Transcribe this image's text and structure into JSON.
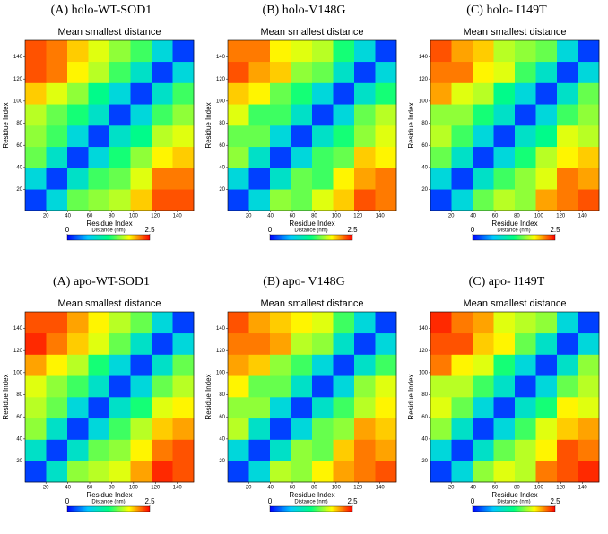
{
  "chart_data": [
    {
      "type": "heatmap",
      "header": "(A) holo-WT-SOD1",
      "title": "Mean smallest distance",
      "x_label": "Residue Index",
      "y_label": "Residue Index",
      "xlim": [
        1,
        155
      ],
      "ylim": [
        1,
        155
      ],
      "xticks": [
        20,
        40,
        60,
        80,
        100,
        120,
        140
      ],
      "yticks": [
        20,
        40,
        60,
        80,
        100,
        120,
        140
      ],
      "colors": [
        "#0000ff",
        "#00c8ff",
        "#00ff80",
        "#ffff00",
        "#ff0000"
      ],
      "colorbar_label": "Distance (nm)",
      "colorbar_lim": [
        0,
        2.5
      ],
      "colorbar_ticks": [
        0,
        2.5
      ],
      "values": [
        [
          0.2,
          0.8,
          1.5,
          1.6,
          1.7,
          2.0,
          2.3,
          2.3
        ],
        [
          0.8,
          0.2,
          0.9,
          1.4,
          1.5,
          1.8,
          2.2,
          2.2
        ],
        [
          1.5,
          0.9,
          0.2,
          0.8,
          1.3,
          1.6,
          1.9,
          2.0
        ],
        [
          1.6,
          1.4,
          0.8,
          0.2,
          0.9,
          1.2,
          1.7,
          1.8
        ],
        [
          1.7,
          1.5,
          1.3,
          0.9,
          0.2,
          0.8,
          1.4,
          1.6
        ],
        [
          2.0,
          1.8,
          1.6,
          1.2,
          0.8,
          0.2,
          0.9,
          1.4
        ],
        [
          2.3,
          2.2,
          1.9,
          1.7,
          1.4,
          0.9,
          0.2,
          0.8
        ],
        [
          2.3,
          2.2,
          2.0,
          1.8,
          1.6,
          1.4,
          0.8,
          0.2
        ]
      ]
    },
    {
      "type": "heatmap",
      "header": "(B) holo-V148G",
      "title": "Mean smallest distance",
      "x_label": "Residue Index",
      "y_label": "Residue Index",
      "xlim": [
        1,
        155
      ],
      "ylim": [
        1,
        155
      ],
      "xticks": [
        20,
        40,
        60,
        80,
        100,
        120,
        140
      ],
      "yticks": [
        20,
        40,
        60,
        80,
        100,
        120,
        140
      ],
      "colors": [
        "#0000ff",
        "#00c8ff",
        "#00ff80",
        "#ffff00",
        "#ff0000"
      ],
      "colorbar_label": "Distance (nm)",
      "colorbar_lim": [
        0,
        2.5
      ],
      "colorbar_ticks": [
        0,
        2.5
      ],
      "values": [
        [
          0.2,
          0.8,
          1.6,
          1.5,
          1.8,
          2.0,
          2.3,
          2.2
        ],
        [
          0.8,
          0.2,
          0.9,
          1.5,
          1.4,
          1.9,
          2.1,
          2.2
        ],
        [
          1.6,
          0.9,
          0.2,
          0.8,
          1.4,
          1.5,
          2.0,
          1.9
        ],
        [
          1.5,
          1.5,
          0.8,
          0.2,
          0.9,
          1.3,
          1.6,
          1.8
        ],
        [
          1.8,
          1.4,
          1.4,
          0.9,
          0.2,
          0.8,
          1.5,
          1.7
        ],
        [
          2.0,
          1.9,
          1.5,
          1.3,
          0.8,
          0.2,
          0.9,
          1.3
        ],
        [
          2.3,
          2.1,
          2.0,
          1.6,
          1.5,
          0.9,
          0.2,
          0.8
        ],
        [
          2.2,
          2.2,
          1.9,
          1.8,
          1.7,
          1.3,
          0.8,
          0.2
        ]
      ]
    },
    {
      "type": "heatmap",
      "header": "(C) holo- I149T",
      "title": "Mean smallest distance",
      "x_label": "Residue Index",
      "y_label": "Residue Index",
      "xlim": [
        1,
        155
      ],
      "ylim": [
        1,
        155
      ],
      "xticks": [
        20,
        40,
        60,
        80,
        100,
        120,
        140
      ],
      "yticks": [
        20,
        40,
        60,
        80,
        100,
        120,
        140
      ],
      "colors": [
        "#0000ff",
        "#00c8ff",
        "#00ff80",
        "#ffff00",
        "#ff0000"
      ],
      "colorbar_label": "Distance (nm)",
      "colorbar_lim": [
        0,
        2.5
      ],
      "colorbar_ticks": [
        0,
        2.5
      ],
      "values": [
        [
          0.2,
          0.8,
          1.5,
          1.7,
          1.6,
          2.1,
          2.2,
          2.3
        ],
        [
          0.8,
          0.2,
          0.9,
          1.4,
          1.6,
          1.8,
          2.2,
          2.1
        ],
        [
          1.5,
          0.9,
          0.2,
          0.8,
          1.3,
          1.7,
          1.9,
          2.0
        ],
        [
          1.7,
          1.4,
          0.8,
          0.2,
          0.9,
          1.2,
          1.8,
          1.7
        ],
        [
          1.6,
          1.6,
          1.3,
          0.9,
          0.2,
          0.8,
          1.4,
          1.6
        ],
        [
          2.1,
          1.8,
          1.7,
          1.2,
          0.8,
          0.2,
          0.9,
          1.5
        ],
        [
          2.2,
          2.2,
          1.9,
          1.8,
          1.4,
          0.9,
          0.2,
          0.8
        ],
        [
          2.3,
          2.1,
          2.0,
          1.7,
          1.6,
          1.5,
          0.8,
          0.2
        ]
      ]
    },
    {
      "type": "heatmap",
      "header": "(A) apo-WT-SOD1",
      "title": "Mean smallest distance",
      "x_label": "Residue Index",
      "y_label": "Residue Index",
      "xlim": [
        1,
        155
      ],
      "ylim": [
        1,
        155
      ],
      "xticks": [
        20,
        40,
        60,
        80,
        100,
        120,
        140
      ],
      "yticks": [
        20,
        40,
        60,
        80,
        100,
        120,
        140
      ],
      "colors": [
        "#0000ff",
        "#00c8ff",
        "#00ff80",
        "#ffff00",
        "#ff0000"
      ],
      "colorbar_label": "Distance (nm)",
      "colorbar_lim": [
        0,
        2.5
      ],
      "colorbar_ticks": [
        0,
        2.5
      ],
      "values": [
        [
          0.2,
          0.9,
          1.6,
          1.7,
          1.8,
          2.1,
          2.4,
          2.3
        ],
        [
          0.9,
          0.2,
          0.9,
          1.5,
          1.6,
          1.9,
          2.2,
          2.3
        ],
        [
          1.6,
          0.9,
          0.2,
          0.8,
          1.4,
          1.7,
          2.0,
          2.1
        ],
        [
          1.7,
          1.5,
          0.8,
          0.2,
          0.9,
          1.3,
          1.8,
          1.9
        ],
        [
          1.8,
          1.6,
          1.4,
          0.9,
          0.2,
          0.8,
          1.5,
          1.7
        ],
        [
          2.1,
          1.9,
          1.7,
          1.3,
          0.8,
          0.2,
          0.9,
          1.5
        ],
        [
          2.4,
          2.2,
          2.0,
          1.8,
          1.5,
          0.9,
          0.2,
          0.8
        ],
        [
          2.3,
          2.3,
          2.1,
          1.9,
          1.7,
          1.5,
          0.8,
          0.2
        ]
      ]
    },
    {
      "type": "heatmap",
      "header": "(B) apo- V148G",
      "title": "Mean smallest distance",
      "x_label": "Residue Index",
      "y_label": "Residue Index",
      "xlim": [
        1,
        155
      ],
      "ylim": [
        1,
        155
      ],
      "xticks": [
        20,
        40,
        60,
        80,
        100,
        120,
        140
      ],
      "yticks": [
        20,
        40,
        60,
        80,
        100,
        120,
        140
      ],
      "colors": [
        "#0000ff",
        "#00c8ff",
        "#00ff80",
        "#ffff00",
        "#ff0000"
      ],
      "colorbar_label": "Distance (nm)",
      "colorbar_lim": [
        0,
        2.5
      ],
      "colorbar_ticks": [
        0,
        2.5
      ],
      "values": [
        [
          0.2,
          0.8,
          1.7,
          1.6,
          1.9,
          2.1,
          2.2,
          2.3
        ],
        [
          0.8,
          0.2,
          0.9,
          1.6,
          1.5,
          2.0,
          2.2,
          2.1
        ],
        [
          1.7,
          0.9,
          0.2,
          0.8,
          1.5,
          1.6,
          2.1,
          2.0
        ],
        [
          1.6,
          1.6,
          0.8,
          0.2,
          0.9,
          1.4,
          1.7,
          1.9
        ],
        [
          1.9,
          1.5,
          1.5,
          0.9,
          0.2,
          0.8,
          1.6,
          1.8
        ],
        [
          2.1,
          2.0,
          1.6,
          1.4,
          0.8,
          0.2,
          0.9,
          1.4
        ],
        [
          2.2,
          2.2,
          2.1,
          1.7,
          1.6,
          0.9,
          0.2,
          0.8
        ],
        [
          2.3,
          2.1,
          2.0,
          1.9,
          1.8,
          1.4,
          0.8,
          0.2
        ]
      ]
    },
    {
      "type": "heatmap",
      "header": "(C) apo- I149T",
      "title": "Mean smallest distance",
      "x_label": "Residue Index",
      "y_label": "Residue Index",
      "xlim": [
        1,
        155
      ],
      "ylim": [
        1,
        155
      ],
      "xticks": [
        20,
        40,
        60,
        80,
        100,
        120,
        140
      ],
      "yticks": [
        20,
        40,
        60,
        80,
        100,
        120,
        140
      ],
      "colors": [
        "#0000ff",
        "#00c8ff",
        "#00ff80",
        "#ffff00",
        "#ff0000"
      ],
      "colorbar_label": "Distance (nm)",
      "colorbar_lim": [
        0,
        2.5
      ],
      "colorbar_ticks": [
        0,
        2.5
      ],
      "values": [
        [
          0.2,
          0.8,
          1.6,
          1.8,
          1.7,
          2.2,
          2.3,
          2.4
        ],
        [
          0.8,
          0.2,
          0.9,
          1.5,
          1.7,
          1.9,
          2.3,
          2.2
        ],
        [
          1.6,
          0.9,
          0.2,
          0.8,
          1.4,
          1.8,
          2.0,
          2.1
        ],
        [
          1.8,
          1.5,
          0.8,
          0.2,
          0.9,
          1.3,
          1.9,
          1.8
        ],
        [
          1.7,
          1.7,
          1.4,
          0.9,
          0.2,
          0.8,
          1.5,
          1.7
        ],
        [
          2.2,
          1.9,
          1.8,
          1.3,
          0.8,
          0.2,
          0.9,
          1.6
        ],
        [
          2.3,
          2.3,
          2.0,
          1.9,
          1.5,
          0.9,
          0.2,
          0.8
        ],
        [
          2.4,
          2.2,
          2.1,
          1.8,
          1.7,
          1.6,
          0.8,
          0.2
        ]
      ]
    }
  ]
}
